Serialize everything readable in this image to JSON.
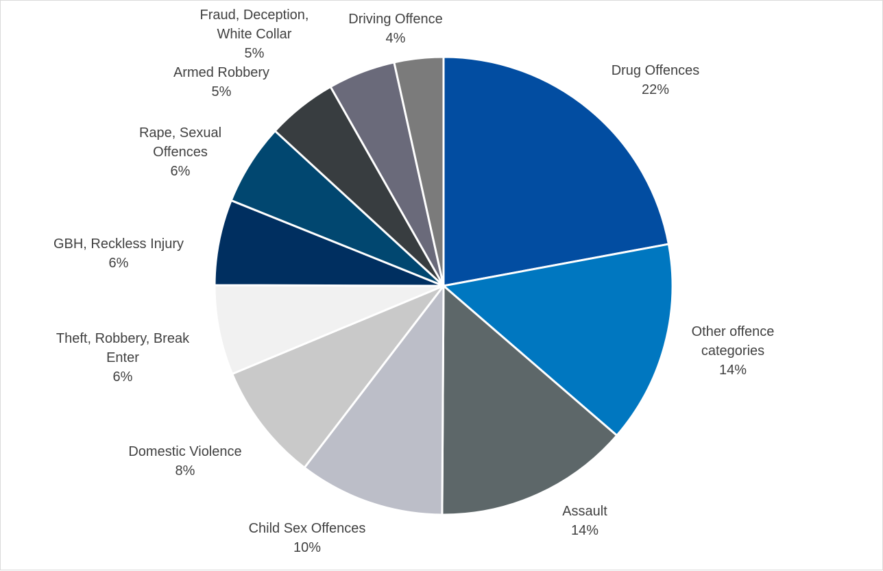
{
  "chart_data": {
    "type": "pie",
    "title": "",
    "slices": [
      {
        "name": "Drug Offences",
        "label_lines": [
          "Drug Offences"
        ],
        "percent_label": "22%",
        "value": 22.3,
        "color": "#024da1"
      },
      {
        "name": "Other offence categories",
        "label_lines": [
          "Other offence",
          "categories"
        ],
        "percent_label": "14%",
        "value": 14.4,
        "color": "#0077c0"
      },
      {
        "name": "Assault",
        "label_lines": [
          "Assault"
        ],
        "percent_label": "14%",
        "value": 13.9,
        "color": "#5d6769"
      },
      {
        "name": "Child Sex Offences",
        "label_lines": [
          "Child Sex Offences"
        ],
        "percent_label": "10%",
        "value": 10.4,
        "color": "#bcbec8"
      },
      {
        "name": "Domestic Violence",
        "label_lines": [
          "Domestic Violence"
        ],
        "percent_label": "8%",
        "value": 8.4,
        "color": "#c9c9c9"
      },
      {
        "name": "Theft, Robbery, Break Enter",
        "label_lines": [
          "Theft, Robbery, Break",
          "Enter"
        ],
        "percent_label": "6%",
        "value": 6.4,
        "color": "#f1f1f1"
      },
      {
        "name": "GBH, Reckless Injury",
        "label_lines": [
          "GBH, Reckless Injury"
        ],
        "percent_label": "6%",
        "value": 6.1,
        "color": "#002f60"
      },
      {
        "name": "Rape, Sexual Offences",
        "label_lines": [
          "Rape, Sexual",
          "Offences"
        ],
        "percent_label": "6%",
        "value": 5.8,
        "color": "#014770"
      },
      {
        "name": "Armed Robbery",
        "label_lines": [
          "Armed Robbery"
        ],
        "percent_label": "5%",
        "value": 5.0,
        "color": "#383d40"
      },
      {
        "name": "Fraud, Deception, White Collar",
        "label_lines": [
          "Fraud, Deception,",
          "White Collar"
        ],
        "percent_label": "5%",
        "value": 4.8,
        "color": "#6a6a7a"
      },
      {
        "name": "Driving Offence",
        "label_lines": [
          "Driving Offence"
        ],
        "percent_label": "4%",
        "value": 3.5,
        "color": "#7b7b7b"
      }
    ],
    "legend": "none",
    "data_labels": "outside"
  }
}
